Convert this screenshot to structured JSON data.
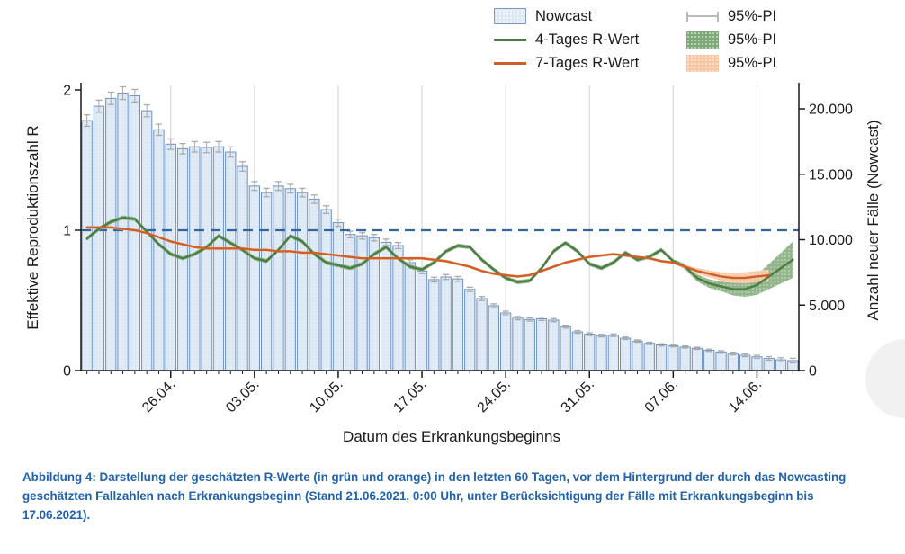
{
  "figure": {
    "caption": "Abbildung 4: Darstellung der geschätzten R-Werte (in grün und orange) in den letzten 60 Tagen, vor dem Hintergrund der durch das Nowcasting geschätzten Fallzahlen nach Erkrankungsbeginn (Stand 21.06.2021, 0:00 Uhr, unter Berücksichtigung der Fälle mit Erkrankungsbeginn bis 17.06.2021)."
  },
  "legend": {
    "items": [
      {
        "label": "Nowcast",
        "swatch": "bar"
      },
      {
        "label": "4-Tages R-Wert",
        "swatch": "green-line"
      },
      {
        "label": "7-Tages R-Wert",
        "swatch": "orange-line"
      },
      {
        "label": "95%-PI",
        "swatch": "whisker"
      },
      {
        "label": "95%-PI",
        "swatch": "green-fill"
      },
      {
        "label": "95%-PI",
        "swatch": "orange-fill"
      }
    ]
  },
  "colors": {
    "bar_fill": "#dce8f4",
    "bar_stroke": "#6e92c2",
    "green": "#4b7e42",
    "orange": "#d05f27",
    "green_band": "#7fa878",
    "orange_band": "#f9c6a2",
    "reference": "#33659c",
    "whisker": "#a9a9a9",
    "grid": "#d9d9d9",
    "axis": "#1a1a1a",
    "caption_text": "#2062ac",
    "widget_circle": "#f1f1f2"
  },
  "chart_data": {
    "type": "bar+line composite",
    "title": "",
    "xlabel": "Datum des Erkrankungsbeginns",
    "n_days": 60,
    "x_ticks": [
      {
        "i": 7,
        "label": "26.04."
      },
      {
        "i": 14,
        "label": "03.05."
      },
      {
        "i": 21,
        "label": "10.05."
      },
      {
        "i": 28,
        "label": "17.05."
      },
      {
        "i": 35,
        "label": "24.05."
      },
      {
        "i": 42,
        "label": "31.05."
      },
      {
        "i": 49,
        "label": "07.06."
      },
      {
        "i": 56,
        "label": "14.06."
      }
    ],
    "y_left": {
      "label": "Effektive Reproduktionszahl R",
      "range": [
        0,
        2
      ],
      "ticks": [
        {
          "v": 0,
          "t": "0"
        },
        {
          "v": 1,
          "t": "1"
        },
        {
          "v": 2,
          "t": "2"
        }
      ]
    },
    "y_right": {
      "label": "Anzahl neuer Fälle (Nowcast)",
      "range": [
        0,
        20000
      ],
      "ticks": [
        {
          "v": 0,
          "t": "0"
        },
        {
          "v": 5000,
          "t": "5.000"
        },
        {
          "v": 10000,
          "t": "10.000"
        },
        {
          "v": 15000,
          "t": "15.000"
        },
        {
          "v": 20000,
          "t": "20.000"
        }
      ]
    },
    "reference_line": {
      "value": 1,
      "style": "dashed"
    },
    "grid": "vertical weekly gridlines",
    "legend_position": "top",
    "bars": {
      "name": "Nowcast",
      "axis": "right",
      "values": [
        19100,
        20200,
        20800,
        21200,
        21000,
        19850,
        18400,
        17300,
        16950,
        17100,
        17050,
        17100,
        16700,
        15600,
        14100,
        13600,
        14100,
        13900,
        13600,
        13100,
        12300,
        11300,
        10400,
        10300,
        10150,
        9800,
        9550,
        8250,
        7600,
        6950,
        7150,
        7000,
        6200,
        5500,
        4950,
        4400,
        4000,
        3900,
        3950,
        3850,
        3350,
        2950,
        2780,
        2670,
        2700,
        2470,
        2250,
        2080,
        1960,
        1900,
        1800,
        1700,
        1550,
        1420,
        1300,
        1170,
        1050,
        930,
        820,
        760
      ],
      "pi": [
        440,
        460,
        475,
        485,
        480,
        455,
        425,
        400,
        395,
        400,
        395,
        400,
        390,
        365,
        335,
        325,
        335,
        330,
        325,
        315,
        295,
        275,
        255,
        250,
        250,
        240,
        235,
        210,
        195,
        185,
        190,
        185,
        170,
        155,
        145,
        135,
        125,
        120,
        125,
        120,
        110,
        105,
        100,
        95,
        95,
        90,
        90,
        85,
        85,
        85,
        85,
        85,
        90,
        95,
        100,
        110,
        120,
        135,
        155,
        175
      ]
    },
    "series": [
      {
        "name": "4-Tages R-Wert",
        "axis": "left",
        "color_key": "green",
        "values": [
          0.94,
          1.01,
          1.06,
          1.09,
          1.08,
          0.99,
          0.9,
          0.83,
          0.8,
          0.83,
          0.88,
          0.96,
          0.91,
          0.86,
          0.8,
          0.78,
          0.86,
          0.96,
          0.92,
          0.83,
          0.77,
          0.75,
          0.73,
          0.76,
          0.83,
          0.88,
          0.8,
          0.74,
          0.72,
          0.77,
          0.85,
          0.89,
          0.88,
          0.79,
          0.72,
          0.66,
          0.63,
          0.64,
          0.73,
          0.85,
          0.91,
          0.85,
          0.76,
          0.73,
          0.77,
          0.84,
          0.79,
          0.81,
          0.86,
          0.78,
          0.74,
          0.66,
          0.62,
          0.6,
          0.58,
          0.58,
          0.61,
          0.67,
          0.73,
          0.79
        ],
        "pi_halfwidth": [
          0.015,
          0.015,
          0.015,
          0.015,
          0.015,
          0.015,
          0.015,
          0.015,
          0.015,
          0.015,
          0.015,
          0.015,
          0.015,
          0.015,
          0.015,
          0.015,
          0.015,
          0.015,
          0.015,
          0.015,
          0.015,
          0.015,
          0.015,
          0.015,
          0.015,
          0.015,
          0.015,
          0.015,
          0.015,
          0.015,
          0.015,
          0.015,
          0.015,
          0.015,
          0.015,
          0.015,
          0.015,
          0.015,
          0.015,
          0.015,
          0.015,
          0.015,
          0.015,
          0.015,
          0.015,
          0.015,
          0.015,
          0.015,
          0.015,
          0.015,
          0.02,
          0.025,
          0.03,
          0.035,
          0.045,
          0.055,
          0.07,
          0.09,
          0.11,
          0.13
        ]
      },
      {
        "name": "7-Tages R-Wert",
        "axis": "left",
        "color_key": "orange",
        "values": [
          1.02,
          1.02,
          1.02,
          1.01,
          1.0,
          0.98,
          0.95,
          0.92,
          0.9,
          0.88,
          0.87,
          0.87,
          0.87,
          0.87,
          0.86,
          0.86,
          0.85,
          0.85,
          0.84,
          0.84,
          0.83,
          0.82,
          0.81,
          0.8,
          0.8,
          0.8,
          0.8,
          0.8,
          0.8,
          0.79,
          0.78,
          0.76,
          0.74,
          0.71,
          0.69,
          0.68,
          0.67,
          0.68,
          0.71,
          0.74,
          0.77,
          0.79,
          0.81,
          0.82,
          0.83,
          0.82,
          0.81,
          0.8,
          0.78,
          0.77,
          0.74,
          0.71,
          0.69,
          0.67,
          0.66,
          0.66,
          0.67,
          0.68
        ],
        "pi_halfwidth": [
          0.01,
          0.01,
          0.01,
          0.01,
          0.01,
          0.01,
          0.01,
          0.01,
          0.01,
          0.01,
          0.01,
          0.01,
          0.01,
          0.01,
          0.01,
          0.01,
          0.01,
          0.01,
          0.01,
          0.01,
          0.01,
          0.01,
          0.01,
          0.01,
          0.01,
          0.01,
          0.01,
          0.01,
          0.01,
          0.01,
          0.01,
          0.01,
          0.01,
          0.01,
          0.01,
          0.01,
          0.01,
          0.01,
          0.01,
          0.01,
          0.01,
          0.01,
          0.01,
          0.01,
          0.01,
          0.01,
          0.01,
          0.01,
          0.01,
          0.01,
          0.015,
          0.02,
          0.025,
          0.03,
          0.035,
          0.04,
          0.04,
          0.04
        ]
      }
    ]
  }
}
